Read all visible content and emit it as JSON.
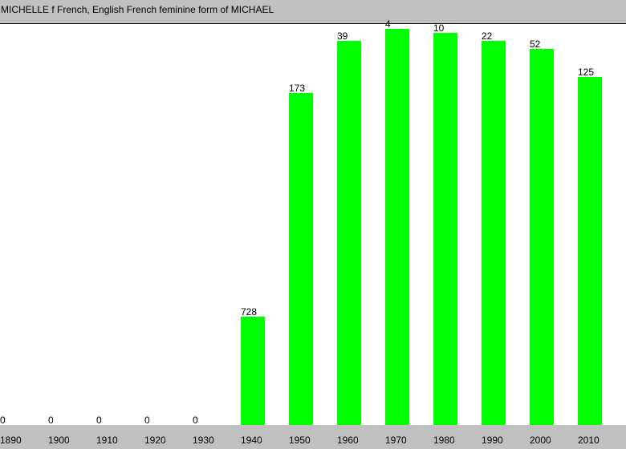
{
  "chart_data": {
    "type": "bar",
    "title": "MICHELLE f French, English French feminine form of MICHAEL",
    "xlabel": "",
    "ylabel": "",
    "categories": [
      "1890",
      "1900",
      "1910",
      "1920",
      "1930",
      "1940",
      "1950",
      "1960",
      "1970",
      "1980",
      "1990",
      "2000",
      "2010"
    ],
    "ranks": [
      "0",
      "0",
      "0",
      "0",
      "0",
      "728",
      "173",
      "39",
      "4",
      "10",
      "22",
      "52",
      "125"
    ],
    "values": [
      0,
      0,
      0,
      0,
      0,
      0.27,
      0.83,
      0.96,
      0.99,
      0.98,
      0.96,
      0.94,
      0.87
    ],
    "ylim": [
      0,
      1
    ],
    "grid": false,
    "bar_color": "#00ff00",
    "axis_band_color": "#c0c0c0"
  }
}
